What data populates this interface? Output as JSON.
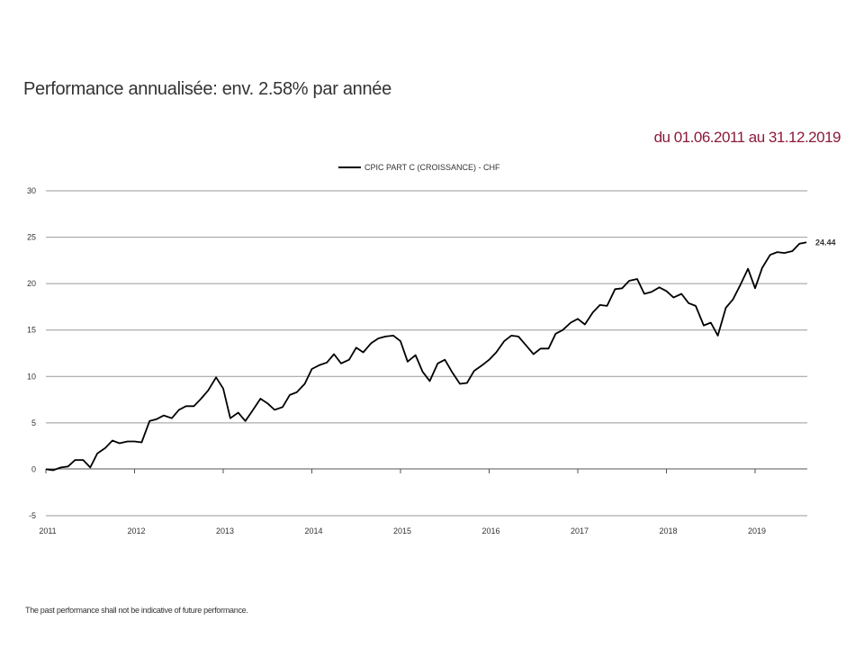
{
  "title": "Performance annualisée: env. 2.58% par année",
  "period": "du 01.06.2011 au 31.12.2019",
  "footnote": "The past performance shall not be indicative of future performance.",
  "colors": {
    "accent": "#8b1a3a",
    "line": "#000000",
    "grid": "#999999",
    "text": "#333333"
  },
  "chart_data": {
    "type": "line",
    "title": "",
    "xlabel": "",
    "ylabel": "",
    "legend_position": "top-center",
    "grid": true,
    "ylim": [
      -5,
      30
    ],
    "yticks": [
      "-5",
      "0",
      "5",
      "10",
      "15",
      "20",
      "25",
      "30"
    ],
    "xticks": [
      "2011",
      "2012",
      "2013",
      "2014",
      "2015",
      "2016",
      "2017",
      "2018",
      "2019"
    ],
    "end_label": "24.44",
    "series": [
      {
        "name": "CPIC PART C (CROISSANCE) - CHF",
        "x": [
          2011.0,
          2011.08,
          2011.17,
          2011.25,
          2011.33,
          2011.42,
          2011.5,
          2011.58,
          2011.67,
          2011.75,
          2011.83,
          2011.92,
          2012.0,
          2012.08,
          2012.17,
          2012.25,
          2012.33,
          2012.42,
          2012.5,
          2012.58,
          2012.67,
          2012.75,
          2012.83,
          2012.92,
          2013.0,
          2013.08,
          2013.17,
          2013.25,
          2013.33,
          2013.42,
          2013.5,
          2013.58,
          2013.67,
          2013.75,
          2013.83,
          2013.92,
          2014.0,
          2014.08,
          2014.17,
          2014.25,
          2014.33,
          2014.42,
          2014.5,
          2014.58,
          2014.67,
          2014.75,
          2014.83,
          2014.92,
          2015.0,
          2015.08,
          2015.17,
          2015.25,
          2015.33,
          2015.42,
          2015.5,
          2015.58,
          2015.67,
          2015.75,
          2015.83,
          2015.92,
          2016.0,
          2016.08,
          2016.17,
          2016.25,
          2016.33,
          2016.42,
          2016.5,
          2016.58,
          2016.67,
          2016.75,
          2016.83,
          2016.92,
          2017.0,
          2017.08,
          2017.17,
          2017.25,
          2017.33,
          2017.42,
          2017.5,
          2017.58,
          2017.67,
          2017.75,
          2017.83,
          2017.92,
          2018.0,
          2018.08,
          2018.17,
          2018.25,
          2018.33,
          2018.42,
          2018.5,
          2018.58,
          2018.67,
          2018.75,
          2018.83,
          2018.92,
          2019.0,
          2019.08,
          2019.17,
          2019.25,
          2019.33,
          2019.42,
          2019.5,
          2019.58
        ],
        "values": [
          0.0,
          -0.1,
          0.2,
          0.3,
          1.0,
          1.0,
          0.2,
          1.7,
          2.3,
          3.1,
          2.8,
          3.0,
          3.0,
          2.9,
          5.2,
          5.4,
          5.8,
          5.5,
          6.4,
          6.8,
          6.8,
          7.6,
          8.5,
          9.9,
          8.7,
          5.5,
          6.1,
          5.2,
          6.3,
          7.6,
          7.1,
          6.4,
          6.7,
          8.0,
          8.3,
          9.2,
          10.8,
          11.2,
          11.5,
          12.4,
          11.4,
          11.8,
          13.1,
          12.6,
          13.6,
          14.1,
          14.3,
          14.4,
          13.8,
          11.6,
          12.3,
          10.5,
          9.5,
          11.4,
          11.8,
          10.5,
          9.2,
          9.3,
          10.6,
          11.2,
          11.8,
          12.6,
          13.8,
          14.4,
          14.3,
          13.3,
          12.4,
          13.0,
          13.0,
          14.6,
          15.0,
          15.8,
          16.2,
          15.6,
          16.9,
          17.7,
          17.6,
          19.4,
          19.5,
          20.3,
          20.5,
          18.9,
          19.1,
          19.6,
          19.2,
          18.5,
          18.9,
          17.9,
          17.6,
          15.5,
          15.8,
          14.4,
          17.4,
          18.3,
          19.8,
          21.6,
          19.5,
          21.7,
          23.1,
          23.4,
          23.3,
          23.5,
          24.3,
          24.44
        ]
      }
    ]
  }
}
